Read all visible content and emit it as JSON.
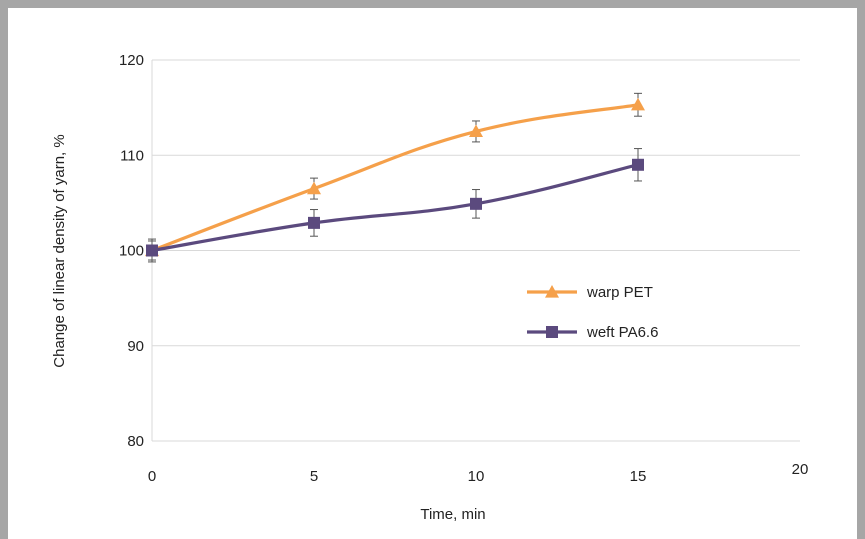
{
  "chart_data": {
    "type": "line",
    "xlabel": "Time, min",
    "ylabel": "Change of linear density of yarn, %",
    "xlim": [
      0,
      20
    ],
    "ylim": [
      80,
      120
    ],
    "x_ticks": [
      0,
      5,
      10,
      15,
      20
    ],
    "y_ticks": [
      80,
      90,
      100,
      110,
      120
    ],
    "grid": "horizontal",
    "legend_position": "center-right",
    "series": [
      {
        "name": "warp PET",
        "color": "#f5a04a",
        "marker": "triangle",
        "x": [
          0,
          5,
          10,
          15
        ],
        "y": [
          100,
          106.5,
          112.5,
          115.3
        ],
        "error": [
          1.2,
          1.1,
          1.1,
          1.2
        ]
      },
      {
        "name": "weft PA6.6",
        "color": "#5b4a7e",
        "marker": "square",
        "x": [
          0,
          5,
          10,
          15
        ],
        "y": [
          100,
          102.9,
          104.9,
          109.0
        ],
        "error": [
          1.0,
          1.4,
          1.5,
          1.7
        ]
      }
    ]
  }
}
